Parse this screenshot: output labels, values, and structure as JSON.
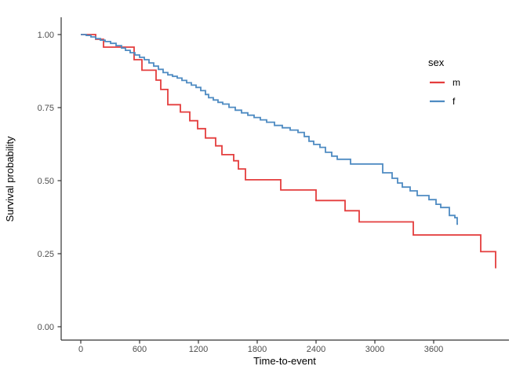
{
  "chart_data": {
    "type": "line",
    "subtype": "kaplan-meier-step-curve",
    "title": "",
    "xlabel": "Time-to-event",
    "ylabel": "Survival probability",
    "grid": false,
    "background": "#ffffff",
    "axis_color": "#333333",
    "tick_label_color": "#4d4d4d",
    "x_ticks": [
      0,
      600,
      1200,
      1800,
      2400,
      3000,
      3600
    ],
    "x_tick_labels": [
      "0",
      "600",
      "1200",
      "1800",
      "2400",
      "3000",
      "3600"
    ],
    "y_ticks": [
      0.0,
      0.25,
      0.5,
      0.75,
      1.0
    ],
    "y_tick_labels": [
      "0.00",
      "0.25",
      "0.50",
      "0.75",
      "1.00"
    ],
    "xlim": [
      -200,
      4368
    ],
    "ylim": [
      0.0,
      1.06
    ],
    "legend": {
      "title": "sex",
      "position": "right",
      "entries": [
        "m",
        "f"
      ]
    },
    "series": [
      {
        "name": "m",
        "color": "#e43d3d",
        "points": [
          [
            0,
            1.0
          ],
          [
            152,
            0.984
          ],
          [
            232,
            0.957
          ],
          [
            544,
            0.914
          ],
          [
            624,
            0.878
          ],
          [
            768,
            0.844
          ],
          [
            816,
            0.812
          ],
          [
            888,
            0.76
          ],
          [
            1016,
            0.735
          ],
          [
            1112,
            0.705
          ],
          [
            1192,
            0.678
          ],
          [
            1272,
            0.646
          ],
          [
            1376,
            0.619
          ],
          [
            1440,
            0.589
          ],
          [
            1560,
            0.568
          ],
          [
            1608,
            0.54
          ],
          [
            1680,
            0.503
          ],
          [
            2040,
            0.468
          ],
          [
            2400,
            0.432
          ],
          [
            2696,
            0.397
          ],
          [
            2840,
            0.359
          ],
          [
            3392,
            0.314
          ],
          [
            4080,
            0.257
          ],
          [
            4232,
            0.2
          ]
        ]
      },
      {
        "name": "f",
        "color": "#4e8bc2",
        "points": [
          [
            0,
            1.0
          ],
          [
            56,
            0.997
          ],
          [
            104,
            0.992
          ],
          [
            152,
            0.986
          ],
          [
            200,
            0.981
          ],
          [
            248,
            0.976
          ],
          [
            304,
            0.97
          ],
          [
            360,
            0.962
          ],
          [
            416,
            0.954
          ],
          [
            456,
            0.946
          ],
          [
            504,
            0.938
          ],
          [
            552,
            0.93
          ],
          [
            600,
            0.922
          ],
          [
            648,
            0.914
          ],
          [
            696,
            0.903
          ],
          [
            744,
            0.892
          ],
          [
            792,
            0.881
          ],
          [
            840,
            0.87
          ],
          [
            888,
            0.862
          ],
          [
            936,
            0.857
          ],
          [
            984,
            0.851
          ],
          [
            1032,
            0.843
          ],
          [
            1080,
            0.835
          ],
          [
            1128,
            0.827
          ],
          [
            1176,
            0.819
          ],
          [
            1224,
            0.808
          ],
          [
            1272,
            0.795
          ],
          [
            1304,
            0.784
          ],
          [
            1352,
            0.776
          ],
          [
            1400,
            0.768
          ],
          [
            1448,
            0.762
          ],
          [
            1512,
            0.751
          ],
          [
            1576,
            0.741
          ],
          [
            1640,
            0.732
          ],
          [
            1704,
            0.724
          ],
          [
            1768,
            0.716
          ],
          [
            1832,
            0.708
          ],
          [
            1896,
            0.7
          ],
          [
            1976,
            0.689
          ],
          [
            2056,
            0.681
          ],
          [
            2136,
            0.673
          ],
          [
            2216,
            0.665
          ],
          [
            2280,
            0.651
          ],
          [
            2328,
            0.635
          ],
          [
            2376,
            0.624
          ],
          [
            2440,
            0.614
          ],
          [
            2496,
            0.597
          ],
          [
            2560,
            0.584
          ],
          [
            2616,
            0.573
          ],
          [
            2752,
            0.557
          ],
          [
            3080,
            0.527
          ],
          [
            3176,
            0.508
          ],
          [
            3232,
            0.492
          ],
          [
            3280,
            0.478
          ],
          [
            3360,
            0.465
          ],
          [
            3432,
            0.449
          ],
          [
            3552,
            0.435
          ],
          [
            3624,
            0.419
          ],
          [
            3672,
            0.408
          ],
          [
            3760,
            0.381
          ],
          [
            3816,
            0.373
          ],
          [
            3840,
            0.351
          ],
          [
            3848,
            0.351
          ]
        ]
      }
    ]
  }
}
